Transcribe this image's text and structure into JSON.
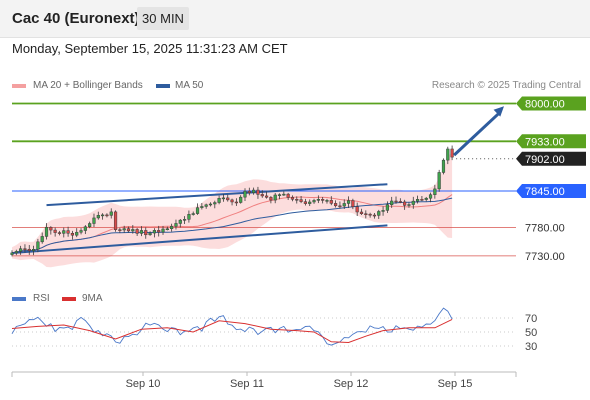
{
  "header": {
    "instrument": "Cac 40 (Euronext)",
    "timeframe": "30 MIN",
    "timestamp": "Monday, September 15, 2025 11:31:23 AM CET"
  },
  "legend": {
    "ma20_label": "MA 20 + Bollinger Bands",
    "ma50_label": "MA 50",
    "credit": "Research © 2025 Trading Central",
    "rsi_label": "RSI",
    "rsi_ma_label": "9MA"
  },
  "colors": {
    "ma20": "#f08080",
    "ma50": "#2e5c9e",
    "bands_fill": "#fbd2d2",
    "trendline": "#2e5c9e",
    "resistance": "#5aa21f",
    "support": "#d9534f",
    "pivot": "#2962ff",
    "current": "#222222",
    "rsi": "#4a78c8",
    "rsi_ma": "#d93030",
    "candle": "#3a3a3a"
  },
  "chart_data": {
    "type": "candlestick",
    "y_range": [
      7705,
      8015
    ],
    "x_labels": [
      "Sep 10",
      "Sep 11",
      "Sep 12",
      "Sep 15"
    ],
    "levels": [
      {
        "value": 8000.0,
        "label": "8000.00",
        "kind": "resistance"
      },
      {
        "value": 7933.0,
        "label": "7933.00",
        "kind": "resistance"
      },
      {
        "value": 7902.0,
        "label": "7902.00",
        "kind": "current"
      },
      {
        "value": 7845.0,
        "label": "7845.00",
        "kind": "pivot"
      },
      {
        "value": 7780.0,
        "label": "7780.00",
        "kind": "support"
      },
      {
        "value": 7730.0,
        "label": "7730.00",
        "kind": "support"
      }
    ],
    "close_path": [
      [
        0,
        7738
      ],
      [
        5,
        7740
      ],
      [
        8,
        7780
      ],
      [
        10,
        7772
      ],
      [
        15,
        7770
      ],
      [
        18,
        7790
      ],
      [
        20,
        7798
      ],
      [
        23,
        7805
      ],
      [
        24,
        7778
      ],
      [
        28,
        7774
      ],
      [
        32,
        7770
      ],
      [
        35,
        7774
      ],
      [
        38,
        7788
      ],
      [
        42,
        7808
      ],
      [
        48,
        7830
      ],
      [
        52,
        7828
      ],
      [
        54,
        7848
      ],
      [
        57,
        7840
      ],
      [
        60,
        7832
      ],
      [
        63,
        7838
      ],
      [
        66,
        7826
      ],
      [
        69,
        7822
      ],
      [
        72,
        7830
      ],
      [
        75,
        7815
      ],
      [
        78,
        7828
      ],
      [
        80,
        7806
      ],
      [
        83,
        7802
      ],
      [
        86,
        7810
      ],
      [
        88,
        7824
      ],
      [
        90,
        7822
      ],
      [
        92,
        7824
      ],
      [
        94,
        7828
      ],
      [
        96,
        7830
      ],
      [
        98,
        7850
      ],
      [
        100,
        7900
      ],
      [
        101,
        7922
      ],
      [
        102,
        7905
      ]
    ],
    "trendlines": {
      "upper": [
        [
          8,
          7820
        ],
        [
          87,
          7857
        ]
      ],
      "lower": [
        [
          0,
          7735
        ],
        [
          87,
          7784
        ]
      ],
      "projection": [
        [
          102,
          7905
        ],
        [
          108,
          7995
        ]
      ]
    },
    "rsi": {
      "y_ticks": [
        70,
        50,
        30
      ],
      "rsi_path": [
        [
          0,
          50
        ],
        [
          4,
          68
        ],
        [
          7,
          68
        ],
        [
          10,
          52
        ],
        [
          14,
          58
        ],
        [
          16,
          68
        ],
        [
          20,
          50
        ],
        [
          24,
          36
        ],
        [
          28,
          46
        ],
        [
          32,
          65
        ],
        [
          36,
          55
        ],
        [
          40,
          48
        ],
        [
          44,
          55
        ],
        [
          48,
          75
        ],
        [
          51,
          58
        ],
        [
          54,
          55
        ],
        [
          58,
          50
        ],
        [
          62,
          55
        ],
        [
          66,
          50
        ],
        [
          69,
          60
        ],
        [
          72,
          40
        ],
        [
          74,
          28
        ],
        [
          77,
          38
        ],
        [
          80,
          48
        ],
        [
          84,
          60
        ],
        [
          87,
          52
        ],
        [
          90,
          55
        ],
        [
          94,
          56
        ],
        [
          97,
          66
        ],
        [
          100,
          80
        ],
        [
          102,
          70
        ]
      ],
      "ma_path": [
        [
          0,
          55
        ],
        [
          6,
          58
        ],
        [
          12,
          60
        ],
        [
          18,
          52
        ],
        [
          24,
          40
        ],
        [
          30,
          54
        ],
        [
          36,
          56
        ],
        [
          42,
          50
        ],
        [
          48,
          66
        ],
        [
          54,
          62
        ],
        [
          60,
          54
        ],
        [
          66,
          52
        ],
        [
          70,
          50
        ],
        [
          74,
          36
        ],
        [
          78,
          35
        ],
        [
          82,
          44
        ],
        [
          86,
          52
        ],
        [
          92,
          56
        ],
        [
          98,
          56
        ],
        [
          102,
          68
        ]
      ]
    }
  }
}
